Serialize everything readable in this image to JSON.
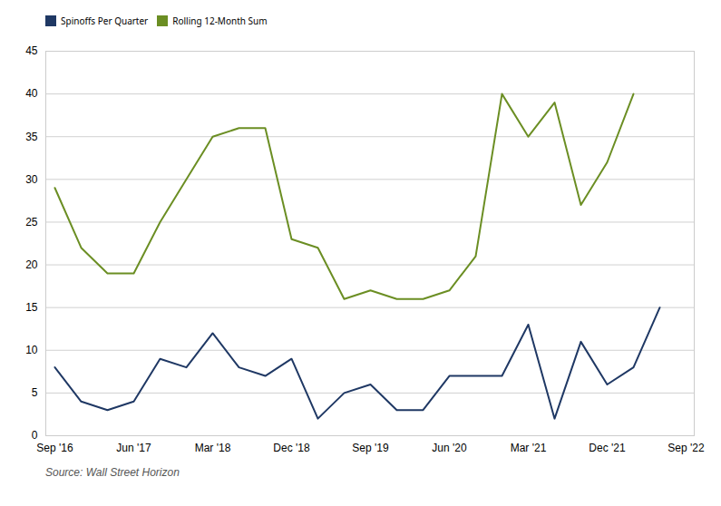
{
  "chart_data": {
    "type": "line",
    "caption": "Source: Wall Street Horizon",
    "categories": [
      "Sep '16",
      null,
      null,
      "Jun '17",
      null,
      null,
      "Mar '18",
      null,
      null,
      "Dec '18",
      null,
      null,
      "Sep '19",
      null,
      null,
      "Jun '20",
      null,
      null,
      "Mar '21",
      null,
      null,
      "Dec '21",
      null,
      null,
      "Sep '22"
    ],
    "series": [
      {
        "name": "Spinoffs Per Quarter",
        "color": "#1f3864",
        "values": [
          8,
          4,
          3,
          4,
          9,
          8,
          12,
          8,
          7,
          9,
          2,
          5,
          6,
          3,
          3,
          7,
          7,
          7,
          13,
          2,
          11,
          6,
          8,
          15,
          null
        ]
      },
      {
        "name": "Rolling 12-Month Sum",
        "color": "#6b8e23",
        "values": [
          29,
          22,
          19,
          19,
          25,
          30,
          35,
          36,
          36,
          23,
          22,
          16,
          17,
          16,
          16,
          17,
          21,
          40,
          35,
          39,
          27,
          32,
          40,
          null,
          null
        ]
      }
    ],
    "ylim": [
      0,
      45
    ],
    "yticks": [
      0,
      5,
      10,
      15,
      20,
      25,
      30,
      35,
      40,
      45
    ],
    "grid": true,
    "legend": "upper left"
  }
}
